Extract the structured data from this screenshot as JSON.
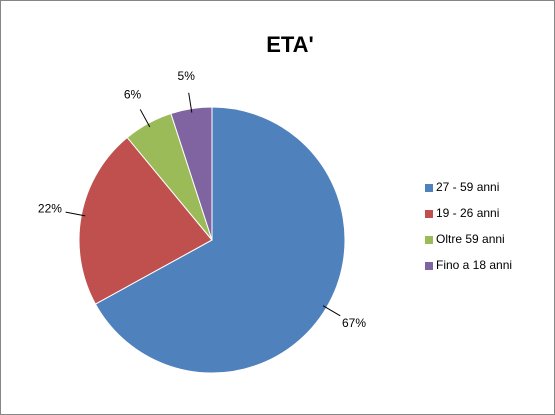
{
  "chart_data": {
    "type": "pie",
    "title": "ETA'",
    "categories": [
      "27 - 59 anni",
      "19 - 26 anni",
      "Oltre 59 anni",
      "Fino a 18 anni"
    ],
    "values": [
      67,
      22,
      6,
      5
    ],
    "value_labels": [
      "67%",
      "22%",
      "6%",
      "5%"
    ],
    "colors": [
      "#4f81bd",
      "#c0504d",
      "#9bbb59",
      "#8064a2"
    ],
    "legend": "right"
  }
}
